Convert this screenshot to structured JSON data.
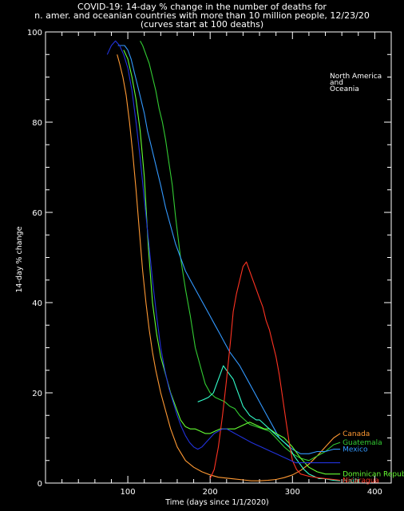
{
  "chart_data": {
    "type": "line",
    "title": [
      "COVID-19: 14-day % change in the number of deaths for",
      "n. amer. and oceanian countries with more than 10 million people, 12/23/20",
      "(curves start at 100 deaths)"
    ],
    "xlabel": "Time (days since 1/1/2020)",
    "ylabel": "14-day % change",
    "annotation": [
      "North America",
      "and",
      "Oceania"
    ],
    "xlim": [
      0,
      420
    ],
    "ylim": [
      0,
      100
    ],
    "xticks": [
      100,
      200,
      300,
      400
    ],
    "yticks": [
      0,
      20,
      40,
      60,
      80,
      100
    ],
    "grid": false,
    "series": [
      {
        "name": "Canada",
        "color": "#ff9933",
        "x": [
          87,
          90,
          94,
          98,
          102,
          106,
          110,
          114,
          118,
          122,
          126,
          130,
          134,
          140,
          146,
          152,
          160,
          170,
          180,
          190,
          200,
          210,
          220,
          230,
          240,
          250,
          260,
          270,
          280,
          290,
          300,
          310,
          320,
          330,
          340,
          350,
          358
        ],
        "y": [
          95,
          93,
          90,
          86,
          80,
          73,
          65,
          56,
          47,
          40,
          34,
          29,
          25,
          20,
          16,
          12,
          8,
          5,
          3.5,
          2.5,
          1.8,
          1.3,
          1.1,
          0.9,
          0.7,
          0.5,
          0.5,
          0.6,
          0.8,
          1.2,
          1.8,
          2.8,
          4.2,
          6,
          8,
          10,
          11
        ]
      },
      {
        "name": "Guatemala",
        "color": "#33cc33",
        "x": [
          115,
          118,
          122,
          126,
          130,
          134,
          138,
          142,
          146,
          150,
          154,
          158,
          164,
          170,
          176,
          182,
          188,
          194,
          200,
          206,
          212,
          218,
          224,
          230,
          236,
          242,
          248,
          256,
          264,
          272,
          280,
          290,
          300,
          310,
          320,
          330,
          340,
          350,
          358
        ],
        "y": [
          98,
          97,
          95,
          93,
          90,
          87,
          83,
          80,
          76,
          71,
          66,
          59,
          50,
          43,
          37,
          30,
          26,
          22,
          20,
          19,
          18.5,
          18,
          17,
          16.5,
          15,
          14,
          13,
          12.5,
          12,
          11.5,
          10,
          8,
          6.5,
          5.5,
          5,
          6,
          7,
          8.5,
          9
        ]
      },
      {
        "name": "Mexico",
        "color": "#3399ff",
        "x": [
          88,
          92,
          96,
          100,
          104,
          108,
          112,
          116,
          120,
          124,
          128,
          132,
          136,
          140,
          146,
          152,
          158,
          164,
          170,
          176,
          182,
          188,
          194,
          200,
          206,
          212,
          218,
          224,
          230,
          236,
          242,
          248,
          254,
          260,
          266,
          272,
          278,
          284,
          290,
          300,
          310,
          320,
          330,
          340,
          350,
          358
        ],
        "y": [
          97,
          97,
          97,
          96,
          94,
          91,
          88,
          85,
          82,
          78,
          75,
          72,
          69,
          66,
          61,
          57,
          53,
          50,
          47,
          45,
          43,
          41,
          39,
          37,
          35,
          33,
          31,
          29,
          27.5,
          26,
          24,
          22,
          20,
          18,
          16,
          14,
          12,
          10,
          9,
          7.5,
          6.5,
          6.5,
          7,
          7,
          7.5,
          7.5
        ]
      },
      {
        "name": "Dominican Republic",
        "color": "#66ff33",
        "x": [
          95,
          100,
          105,
          110,
          115,
          120,
          125,
          130,
          135,
          140,
          146,
          152,
          158,
          164,
          170,
          176,
          182,
          188,
          194,
          200,
          206,
          212,
          218,
          224,
          230,
          236,
          242,
          248,
          254,
          260,
          266,
          272,
          280,
          290,
          300,
          310,
          320,
          330,
          340,
          350,
          358
        ],
        "y": [
          96,
          94,
          90,
          85,
          78,
          68,
          52,
          40,
          33,
          28,
          24,
          20,
          17,
          14,
          12.5,
          12,
          12,
          11.5,
          11,
          11,
          11.5,
          12,
          12,
          12,
          12,
          12.5,
          13,
          13.5,
          13,
          12.5,
          12,
          12,
          11,
          10,
          8,
          5.5,
          3.5,
          2.5,
          2,
          2,
          2
        ]
      },
      {
        "name": "Haiti",
        "color": "#33ffcc",
        "x": [
          185,
          192,
          198,
          204,
          208,
          212,
          216,
          220,
          224,
          228,
          232,
          236,
          240,
          244,
          248,
          252,
          256,
          260,
          266,
          272,
          278,
          284,
          290,
          296,
          302,
          308,
          314,
          320,
          326,
          332,
          338,
          344,
          350,
          358
        ],
        "y": [
          18,
          18.5,
          19,
          20,
          22,
          24,
          26,
          25,
          24,
          23,
          21,
          19,
          17,
          16,
          15,
          14.5,
          14,
          14,
          13,
          12,
          11,
          10,
          9,
          8,
          6,
          4.5,
          3,
          2,
          1.5,
          1,
          1,
          0.8,
          0.6,
          0.5
        ]
      },
      {
        "name": "Nicaragua",
        "color": "#ff3322",
        "x": [
          200,
          205,
          210,
          215,
          220,
          225,
          228,
          232,
          236,
          240,
          244,
          248,
          252,
          256,
          260,
          264,
          268,
          272,
          276,
          280,
          284,
          288,
          292,
          296,
          300,
          305,
          310,
          320,
          330,
          340,
          350,
          358
        ],
        "y": [
          1,
          3,
          8,
          15,
          23,
          32,
          38,
          42,
          45,
          48,
          49,
          47,
          45,
          43,
          41,
          39,
          36,
          34,
          31,
          28,
          24,
          19,
          14,
          9,
          5,
          3,
          2,
          1.5,
          1.2,
          1,
          0.8,
          0.6
        ]
      },
      {
        "name": "",
        "color": "#2233dd",
        "x": [
          75,
          80,
          85,
          90,
          95,
          100,
          105,
          110,
          115,
          120,
          125,
          130,
          135,
          140,
          145,
          150,
          155,
          160,
          165,
          170,
          175,
          180,
          185,
          190,
          195,
          200,
          205,
          210,
          215,
          220,
          225,
          230,
          235,
          240,
          245,
          250,
          256,
          262,
          268,
          274,
          280,
          286,
          292,
          298,
          304,
          310,
          316,
          322,
          328,
          334,
          340,
          346,
          352,
          358
        ],
        "y": [
          95,
          97,
          98,
          97,
          95,
          92,
          87,
          80,
          72,
          63,
          54,
          45,
          37,
          30,
          25,
          21,
          18,
          15,
          12.5,
          10.5,
          9,
          8,
          7.5,
          8,
          9,
          10,
          11,
          11.5,
          12,
          12,
          11.5,
          11,
          10.5,
          10,
          9.5,
          9,
          8.5,
          8,
          7.5,
          7,
          6.5,
          6,
          5.5,
          5,
          4.5,
          4.5,
          4.5,
          4.5,
          4.5,
          4.5,
          4.5,
          4.5,
          4.5,
          4.5
        ]
      }
    ]
  }
}
